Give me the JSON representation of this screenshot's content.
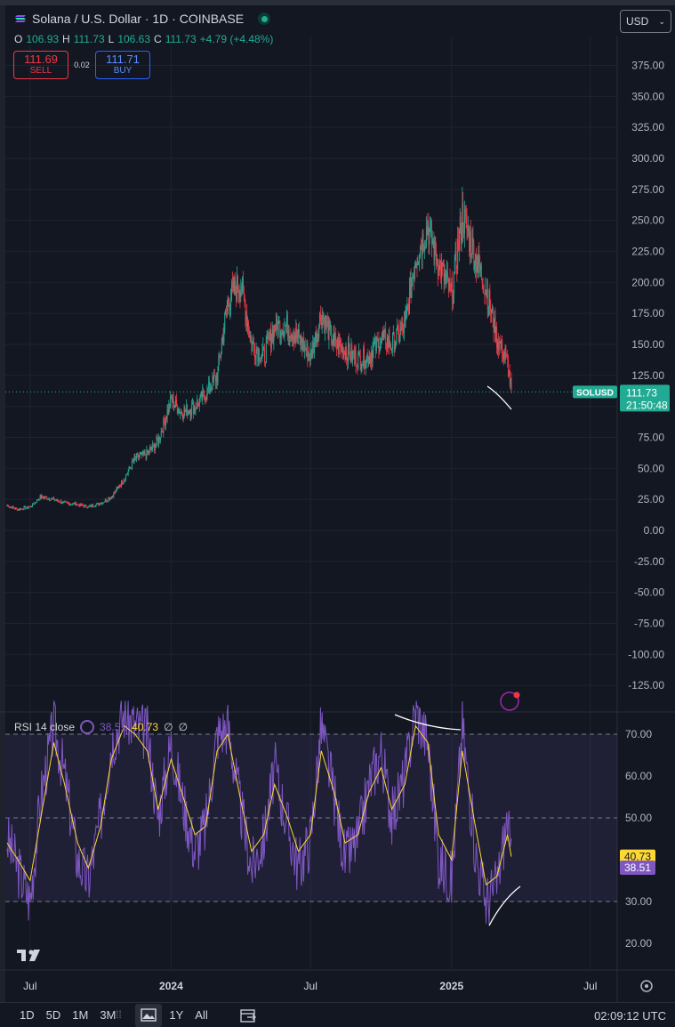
{
  "header": {
    "symbol_title": "Solana / U.S. Dollar · 1D · COINBASE",
    "ohlc": [
      {
        "key": "O",
        "value": "106.93"
      },
      {
        "key": "H",
        "value": "111.73"
      },
      {
        "key": "L",
        "value": "106.63"
      },
      {
        "key": "C",
        "value": "111.73"
      }
    ],
    "change": "+4.79 (+4.48%)",
    "currency": "USD"
  },
  "trade": {
    "sell_price": "111.69",
    "sell_label": "SELL",
    "spread": "0.02",
    "buy_price": "111.71",
    "buy_label": "BUY"
  },
  "price_tag": {
    "symbol": "SOLUSD",
    "price": "111.73",
    "countdown": "21:50:48"
  },
  "rsi_legend": {
    "name": "RSI 14 close",
    "rsi": "38.51",
    "ma": "40.73",
    "extra1": "∅",
    "extra2": "∅"
  },
  "rsi_tags": {
    "ma": "40.73",
    "rsi": "38.51"
  },
  "colors": {
    "up": "#22ab94",
    "down": "#f23645",
    "rsi": "#7e57c2",
    "rsi_ma": "#fdd835",
    "bg": "#131722"
  },
  "bottom": {
    "ranges": [
      "1D",
      "5D",
      "1M",
      "3M",
      "",
      "1Y",
      "All"
    ],
    "time": "02:09:12 UTC"
  },
  "chart_data": [
    {
      "type": "candlestick",
      "series_name": "SOLUSD",
      "x": [
        "2023-06-01",
        "2023-06-15",
        "2023-07-01",
        "2023-07-15",
        "2023-08-01",
        "2023-08-15",
        "2023-09-01",
        "2023-09-15",
        "2023-10-01",
        "2023-10-15",
        "2023-11-01",
        "2023-11-15",
        "2023-12-01",
        "2023-12-15",
        "2024-01-01",
        "2024-01-15",
        "2024-02-01",
        "2024-02-15",
        "2024-03-01",
        "2024-03-15",
        "2024-04-01",
        "2024-04-15",
        "2024-05-01",
        "2024-05-15",
        "2024-06-01",
        "2024-06-15",
        "2024-07-01",
        "2024-07-15",
        "2024-08-01",
        "2024-08-15",
        "2024-09-01",
        "2024-09-15",
        "2024-10-01",
        "2024-10-15",
        "2024-11-01",
        "2024-11-15",
        "2024-12-01",
        "2024-12-15",
        "2025-01-01",
        "2025-01-15",
        "2025-02-01",
        "2025-02-15",
        "2025-03-01",
        "2025-03-15",
        "2025-03-20"
      ],
      "close": [
        20,
        17,
        19,
        27,
        25,
        22,
        21,
        19,
        22,
        27,
        42,
        58,
        62,
        72,
        105,
        95,
        100,
        110,
        125,
        185,
        200,
        150,
        140,
        165,
        165,
        155,
        140,
        175,
        150,
        145,
        138,
        140,
        155,
        150,
        165,
        220,
        245,
        215,
        190,
        255,
        220,
        195,
        155,
        135,
        112
      ],
      "last_price": 111.73,
      "x_ticks": [
        "Jul",
        "2024",
        "Jul",
        "2025",
        "Jul"
      ],
      "y_ticks": [
        375,
        350,
        325,
        300,
        275,
        250,
        225,
        200,
        175,
        150,
        125,
        100,
        75,
        50,
        25,
        0,
        -25,
        -50,
        -75,
        -100,
        -125
      ],
      "ylim": [
        -125,
        400
      ]
    },
    {
      "type": "line",
      "title": "RSI 14 close",
      "series": [
        {
          "name": "RSI",
          "values": [
            45,
            38,
            30,
            55,
            72,
            60,
            40,
            35,
            50,
            68,
            75,
            72,
            70,
            50,
            68,
            55,
            42,
            48,
            70,
            72,
            52,
            38,
            45,
            62,
            48,
            38,
            45,
            72,
            55,
            40,
            45,
            58,
            66,
            50,
            60,
            76,
            68,
            40,
            35,
            72,
            42,
            30,
            34,
            50,
            38.51
          ]
        },
        {
          "name": "MA",
          "values": [
            44,
            40,
            35,
            50,
            68,
            58,
            44,
            38,
            48,
            64,
            72,
            70,
            66,
            52,
            64,
            56,
            46,
            48,
            66,
            70,
            54,
            42,
            46,
            58,
            50,
            42,
            46,
            66,
            56,
            44,
            46,
            56,
            62,
            52,
            58,
            72,
            68,
            46,
            40,
            66,
            48,
            34,
            36,
            46,
            40.73
          ]
        }
      ],
      "y_ticks": [
        70,
        60,
        50,
        40,
        30,
        20
      ],
      "bands": [
        30,
        70
      ],
      "ylim": [
        16,
        78
      ]
    }
  ]
}
